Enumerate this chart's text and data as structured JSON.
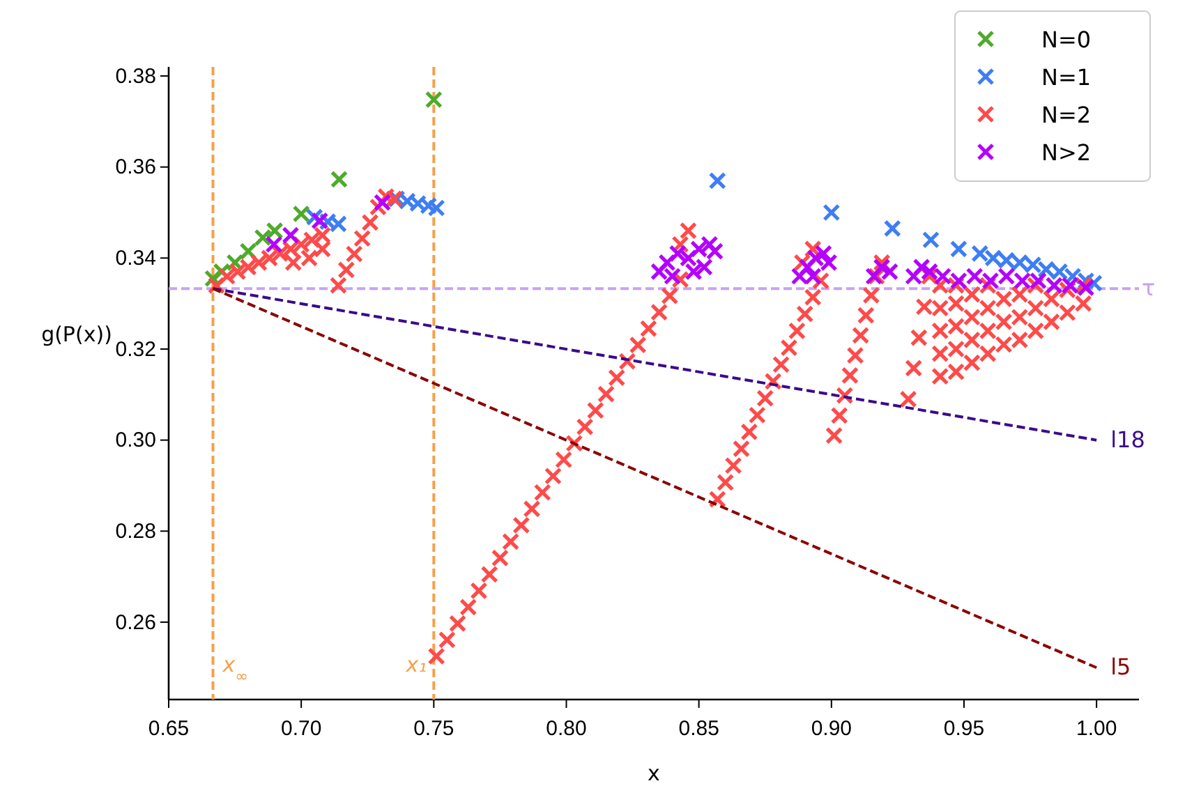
{
  "chart_data": {
    "type": "scatter",
    "xlabel": "x",
    "ylabel": "g(P(x))",
    "xlim": [
      0.65,
      1.016
    ],
    "ylim": [
      0.243,
      0.382
    ],
    "xticks": [
      {
        "value": 0.65,
        "label": "0.65"
      },
      {
        "value": 0.7,
        "label": "0.70"
      },
      {
        "value": 0.75,
        "label": "0.75"
      },
      {
        "value": 0.8,
        "label": "0.80"
      },
      {
        "value": 0.85,
        "label": "0.85"
      },
      {
        "value": 0.9,
        "label": "0.90"
      },
      {
        "value": 0.95,
        "label": "0.95"
      },
      {
        "value": 1.0,
        "label": "1.00"
      }
    ],
    "yticks": [
      {
        "value": 0.26,
        "label": "0.26"
      },
      {
        "value": 0.28,
        "label": "0.28"
      },
      {
        "value": 0.3,
        "label": "0.30"
      },
      {
        "value": 0.32,
        "label": "0.32"
      },
      {
        "value": 0.34,
        "label": "0.34"
      },
      {
        "value": 0.36,
        "label": "0.36"
      },
      {
        "value": 0.38,
        "label": "0.38"
      }
    ],
    "grid": false,
    "legend": "top right",
    "marker": "cross",
    "ref_lines": [
      {
        "axis": "x",
        "value": 0.6667,
        "label": "x$_{∞}$",
        "color": "#f5a04a",
        "line_style": "dashed"
      },
      {
        "axis": "x",
        "value": 0.75,
        "label": "x₁",
        "color": "#f5a04a",
        "line_style": "dashed"
      },
      {
        "axis": "y",
        "value": 0.3333,
        "label": "τ",
        "color": "#c8a2f2",
        "line_style": "dashed"
      }
    ],
    "series": [
      {
        "type": "line",
        "name": "l18",
        "color": "#3a0a8c",
        "line_style": "dashed",
        "marker": "none",
        "x": [
          0.6667,
          1.0
        ],
        "values": [
          0.3333,
          0.3
        ]
      },
      {
        "type": "line",
        "name": "l5",
        "color": "#8b0000",
        "line_style": "dashed",
        "marker": "none",
        "x": [
          0.6667,
          1.0
        ],
        "values": [
          0.3333,
          0.25
        ]
      },
      {
        "name": "N=0",
        "color": "#4dab2a",
        "x": [
          0.6667,
          0.67,
          0.675,
          0.68,
          0.6855,
          0.69,
          0.7,
          0.7143,
          0.75
        ],
        "values": [
          0.3355,
          0.337,
          0.339,
          0.3415,
          0.3445,
          0.346,
          0.3497,
          0.3573,
          0.3748
        ]
      },
      {
        "name": "N=1",
        "color": "#3d7ef5",
        "x": [
          0.705,
          0.71,
          0.714,
          0.736,
          0.74,
          0.744,
          0.748,
          0.751,
          0.857,
          0.9,
          0.923,
          0.9375,
          0.948,
          0.956,
          0.961,
          0.966,
          0.971,
          0.976,
          0.981,
          0.986,
          0.991,
          0.996,
          0.999
        ],
        "values": [
          0.349,
          0.348,
          0.3475,
          0.353,
          0.3525,
          0.352,
          0.3515,
          0.351,
          0.357,
          0.35,
          0.3465,
          0.344,
          0.342,
          0.341,
          0.34,
          0.3395,
          0.339,
          0.3385,
          0.3375,
          0.337,
          0.336,
          0.335,
          0.3345
        ]
      },
      {
        "name": "N=2",
        "color": "#ff4a4a",
        "x": [
          0.668,
          0.672,
          0.676,
          0.68,
          0.684,
          0.688,
          0.692,
          0.696,
          0.7,
          0.704,
          0.708,
          0.697,
          0.703,
          0.708,
          0.714,
          0.717,
          0.72,
          0.723,
          0.726,
          0.729,
          0.732,
          0.735,
          0.751,
          0.755,
          0.759,
          0.763,
          0.767,
          0.771,
          0.775,
          0.779,
          0.783,
          0.787,
          0.791,
          0.795,
          0.799,
          0.803,
          0.807,
          0.811,
          0.815,
          0.819,
          0.823,
          0.827,
          0.831,
          0.835,
          0.839,
          0.843,
          0.846,
          0.843,
          0.857,
          0.86,
          0.863,
          0.866,
          0.869,
          0.872,
          0.875,
          0.878,
          0.881,
          0.884,
          0.887,
          0.89,
          0.893,
          0.896,
          0.893,
          0.889,
          0.901,
          0.903,
          0.905,
          0.907,
          0.909,
          0.911,
          0.913,
          0.915,
          0.917,
          0.919,
          0.929,
          0.931,
          0.933,
          0.935,
          0.937,
          0.941,
          0.941,
          0.941,
          0.941,
          0.941,
          0.947,
          0.947,
          0.947,
          0.947,
          0.947,
          0.953,
          0.953,
          0.953,
          0.953,
          0.959,
          0.959,
          0.959,
          0.959,
          0.965,
          0.965,
          0.965,
          0.971,
          0.971,
          0.971,
          0.977,
          0.977,
          0.977,
          0.983,
          0.983,
          0.989,
          0.989,
          0.995,
          0.995
        ],
        "values": [
          0.334,
          0.336,
          0.337,
          0.338,
          0.339,
          0.34,
          0.341,
          0.342,
          0.343,
          0.344,
          0.345,
          0.339,
          0.34,
          0.342,
          0.334,
          0.3374,
          0.3409,
          0.3443,
          0.3478,
          0.3512,
          0.3535,
          0.353,
          0.2525,
          0.2561,
          0.2597,
          0.2633,
          0.2669,
          0.2705,
          0.2741,
          0.2777,
          0.2813,
          0.2849,
          0.2885,
          0.2921,
          0.2957,
          0.2993,
          0.3029,
          0.3065,
          0.3101,
          0.3137,
          0.3173,
          0.3209,
          0.3245,
          0.3281,
          0.3317,
          0.3353,
          0.346,
          0.343,
          0.287,
          0.2907,
          0.2944,
          0.2981,
          0.3018,
          0.3055,
          0.3092,
          0.3129,
          0.3166,
          0.3203,
          0.324,
          0.3277,
          0.3314,
          0.335,
          0.342,
          0.339,
          0.301,
          0.3054,
          0.3098,
          0.3142,
          0.3186,
          0.323,
          0.3274,
          0.3318,
          0.336,
          0.339,
          0.309,
          0.3158,
          0.3225,
          0.3293,
          0.336,
          0.314,
          0.319,
          0.324,
          0.329,
          0.334,
          0.315,
          0.32,
          0.325,
          0.33,
          0.334,
          0.317,
          0.322,
          0.327,
          0.332,
          0.319,
          0.324,
          0.329,
          0.334,
          0.321,
          0.326,
          0.331,
          0.322,
          0.327,
          0.332,
          0.324,
          0.329,
          0.334,
          0.326,
          0.331,
          0.328,
          0.333,
          0.33,
          0.334
        ]
      },
      {
        "name": "N>2",
        "color": "#b300ff",
        "x": [
          0.6897,
          0.696,
          0.707,
          0.7306,
          0.835,
          0.838,
          0.842,
          0.846,
          0.85,
          0.854,
          0.856,
          0.848,
          0.852,
          0.84,
          0.888,
          0.891,
          0.894,
          0.897,
          0.899,
          0.893,
          0.916,
          0.919,
          0.922,
          0.931,
          0.934,
          0.937,
          0.942,
          0.948,
          0.954,
          0.96,
          0.966,
          0.972,
          0.978,
          0.984,
          0.99,
          0.996
        ],
        "values": [
          0.343,
          0.345,
          0.3482,
          0.3522,
          0.337,
          0.339,
          0.341,
          0.34,
          0.342,
          0.343,
          0.3415,
          0.337,
          0.338,
          0.336,
          0.336,
          0.338,
          0.34,
          0.341,
          0.339,
          0.336,
          0.336,
          0.338,
          0.337,
          0.336,
          0.338,
          0.337,
          0.336,
          0.335,
          0.336,
          0.335,
          0.336,
          0.335,
          0.335,
          0.334,
          0.334,
          0.3335
        ]
      }
    ]
  }
}
